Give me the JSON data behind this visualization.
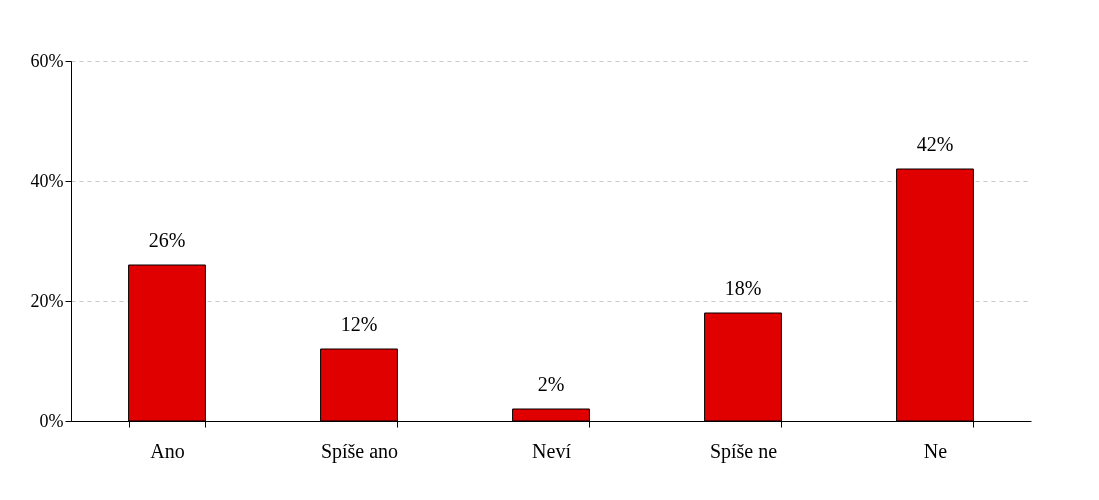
{
  "chart_data": {
    "type": "bar",
    "categories": [
      "Ano",
      "Spíše ano",
      "Neví",
      "Spíše ne",
      "Ne"
    ],
    "values": [
      26,
      12,
      2,
      18,
      42
    ],
    "value_labels": [
      "26%",
      "12%",
      "2%",
      "18%",
      "42%"
    ],
    "color": "#e00000",
    "ylim": [
      0,
      60
    ],
    "yticks": [
      {
        "value": 0,
        "label": "0%"
      },
      {
        "value": 20,
        "label": "20%"
      },
      {
        "value": 40,
        "label": "40%"
      },
      {
        "value": 60,
        "label": "60%"
      }
    ],
    "grid": "y"
  }
}
